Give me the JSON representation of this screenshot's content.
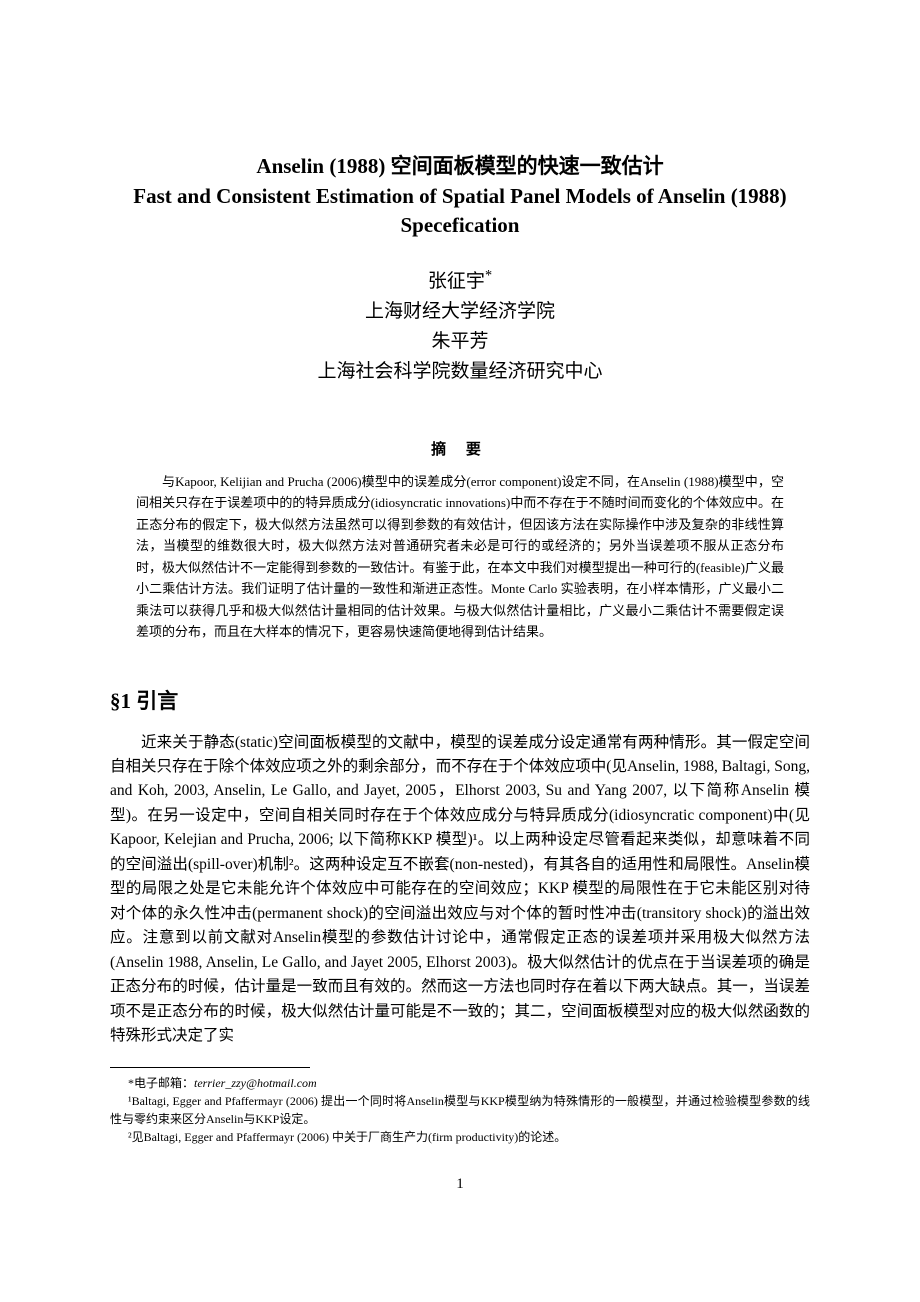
{
  "title": {
    "cn": "Anselin (1988) 空间面板模型的快速一致估计",
    "en_line1": "Fast and Consistent Estimation of Spatial Panel Models of Anselin (1988)",
    "en_line2": "Specefication"
  },
  "authors": {
    "author1_name": "张征宇",
    "author1_affiliation": "上海财经大学经济学院",
    "author2_name": "朱平芳",
    "author2_affiliation": "上海社会科学院数量经济研究中心"
  },
  "abstract": {
    "heading": "摘 要",
    "body": "与Kapoor, Kelijian and Prucha (2006)模型中的误差成分(error component)设定不同，在Anselin (1988)模型中，空间相关只存在于误差项中的的特异质成分(idiosyncratic innovations)中而不存在于不随时间而变化的个体效应中。在正态分布的假定下，极大似然方法虽然可以得到参数的有效估计，但因该方法在实际操作中涉及复杂的非线性算法，当模型的维数很大时，极大似然方法对普通研究者未必是可行的或经济的；另外当误差项不服从正态分布时，极大似然估计不一定能得到参数的一致估计。有鉴于此，在本文中我们对模型提出一种可行的(feasible)广义最小二乘估计方法。我们证明了估计量的一致性和渐进正态性。Monte Carlo 实验表明，在小样本情形，广义最小二乘法可以获得几乎和极大似然估计量相同的估计效果。与极大似然估计量相比，广义最小二乘估计不需要假定误差项的分布，而且在大样本的情况下，更容易快速简便地得到估计结果。"
  },
  "section1": {
    "heading": "§1   引言",
    "body": "近来关于静态(static)空间面板模型的文献中，模型的误差成分设定通常有两种情形。其一假定空间自相关只存在于除个体效应项之外的剩余部分，而不存在于个体效应项中(见Anselin, 1988, Baltagi, Song, and Koh, 2003, Anselin, Le Gallo, and Jayet, 2005，Elhorst 2003, Su and Yang 2007, 以下简称Anselin 模型)。在另一设定中，空间自相关同时存在于个体效应成分与特异质成分(idiosyncratic component)中(见Kapoor, Kelejian and Prucha, 2006; 以下简称KKP 模型)¹。以上两种设定尽管看起来类似，却意味着不同的空间溢出(spill-over)机制²。这两种设定互不嵌套(non-nested)，有其各自的适用性和局限性。Anselin模型的局限之处是它未能允许个体效应中可能存在的空间效应；KKP 模型的局限性在于它未能区别对待对个体的永久性冲击(permanent shock)的空间溢出效应与对个体的暂时性冲击(transitory shock)的溢出效应。注意到以前文献对Anselin模型的参数估计讨论中，通常假定正态的误差项并采用极大似然方法(Anselin 1988, Anselin, Le Gallo, and Jayet 2005, Elhorst 2003)。极大似然估计的优点在于当误差项的确是正态分布的时候，估计量是一致而且有效的。然而这一方法也同时存在着以下两大缺点。其一，当误差项不是正态分布的时候，极大似然估计量可能是不一致的；其二，空间面板模型对应的极大似然函数的特殊形式决定了实"
  },
  "footnotes": {
    "star": "*电子邮箱：",
    "star_email": "terrier_zzy@hotmail.com",
    "fn1": "¹Baltagi, Egger and Pfaffermayr (2006) 提出一个同时将Anselin模型与KKP模型纳为特殊情形的一般模型，并通过检验模型参数的线性与零约束来区分Anselin与KKP设定。",
    "fn2": "²见Baltagi, Egger and Pfaffermayr (2006) 中关于厂商生产力(firm productivity)的论述。"
  },
  "page_number": "1"
}
